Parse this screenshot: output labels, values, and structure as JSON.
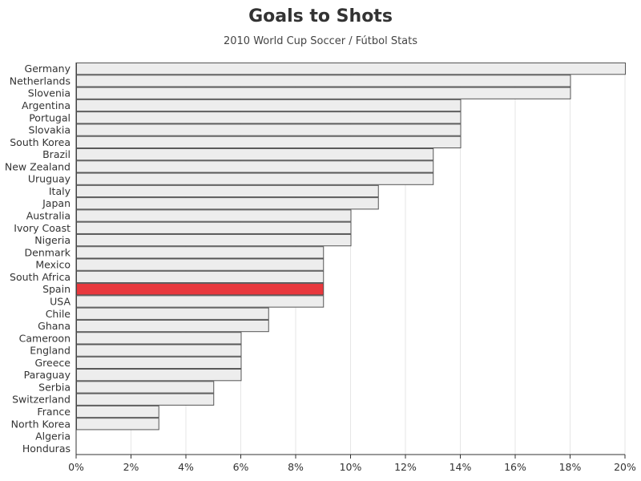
{
  "chart_data": {
    "type": "bar",
    "orientation": "horizontal",
    "title": "Goals to Shots",
    "subtitle": "2010 World Cup Soccer / Fútbol Stats",
    "xlabel": "",
    "ylabel": "",
    "categories": [
      "Germany",
      "Netherlands",
      "Slovenia",
      "Argentina",
      "Portugal",
      "Slovakia",
      "South Korea",
      "Brazil",
      "New Zealand",
      "Uruguay",
      "Italy",
      "Japan",
      "Australia",
      "Ivory Coast",
      "Nigeria",
      "Denmark",
      "Mexico",
      "South Africa",
      "Spain",
      "USA",
      "Chile",
      "Ghana",
      "Cameroon",
      "England",
      "Greece",
      "Paraguay",
      "Serbia",
      "Switzerland",
      "France",
      "North Korea",
      "Algeria",
      "Honduras"
    ],
    "values": [
      20,
      18,
      18,
      14,
      14,
      14,
      14,
      13,
      13,
      13,
      11,
      11,
      10,
      10,
      10,
      9,
      9,
      9,
      9,
      9,
      7,
      7,
      6,
      6,
      6,
      6,
      5,
      5,
      3,
      3,
      0,
      0
    ],
    "value_unit": "%",
    "xlim": [
      0,
      20
    ],
    "xticks": [
      0,
      2,
      4,
      6,
      8,
      10,
      12,
      14,
      16,
      18,
      20
    ],
    "xtick_labels": [
      "0%",
      "2%",
      "4%",
      "6%",
      "8%",
      "10%",
      "12%",
      "14%",
      "16%",
      "18%",
      "20%"
    ],
    "highlight": "Spain",
    "grid": "vertical",
    "legend": "none",
    "colors": {
      "bar": "#ededed",
      "highlight": "#e8383d",
      "bar_edge": "#555555",
      "grid": "#e6e6e6",
      "axis": "#333333"
    }
  }
}
